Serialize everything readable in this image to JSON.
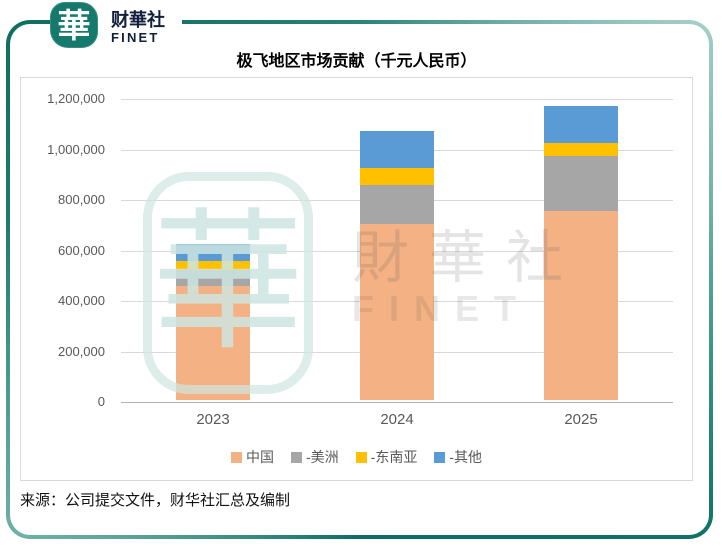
{
  "brand": {
    "seal_char": "華",
    "name_cn": "财華社",
    "name_en": "FINET"
  },
  "title": "极飞地区市场贡献（千元人民币）",
  "watermark": {
    "seal_char": "華",
    "text_cn": "財華社",
    "text_en": "FINET"
  },
  "source": "来源：公司提交文件，财华社汇总及编制",
  "colors": {
    "frame_teal": "#0E7266",
    "logo_teal": "#15796D",
    "china_orange": "#F4B183",
    "americas_gray": "#A6A6A6",
    "sea_yellow": "#FFC000",
    "others_blue": "#5B9BD5",
    "gridline": "#D9D9D9",
    "axis_text": "#595959"
  },
  "chart_data": {
    "type": "bar",
    "stacked": true,
    "title": "极飞地区市场贡献（千元人民币）",
    "unit": "千元人民币",
    "categories": [
      "2023",
      "2024",
      "2025"
    ],
    "series": [
      {
        "name": "中国",
        "legend_label": "中国",
        "color": "#F4B183",
        "values": [
          450000,
          697000,
          748000
        ]
      },
      {
        "name": "美洲",
        "legend_label": "-美洲",
        "color": "#A6A6A6",
        "values": [
          64000,
          155000,
          218000
        ]
      },
      {
        "name": "东南亚",
        "legend_label": "-东南亚",
        "color": "#FFC000",
        "values": [
          36000,
          67000,
          52000
        ]
      },
      {
        "name": "其他",
        "legend_label": "-其他",
        "color": "#5B9BD5",
        "values": [
          68000,
          146000,
          147000
        ]
      }
    ],
    "xlabel": "",
    "ylabel": "",
    "ylim": [
      0,
      1200000
    ],
    "ytick_labels": [
      "1,200,000",
      "1,000,000",
      "800,000",
      "600,000",
      "400,000",
      "200,000",
      "0"
    ],
    "grid": true,
    "legend_position": "bottom"
  }
}
